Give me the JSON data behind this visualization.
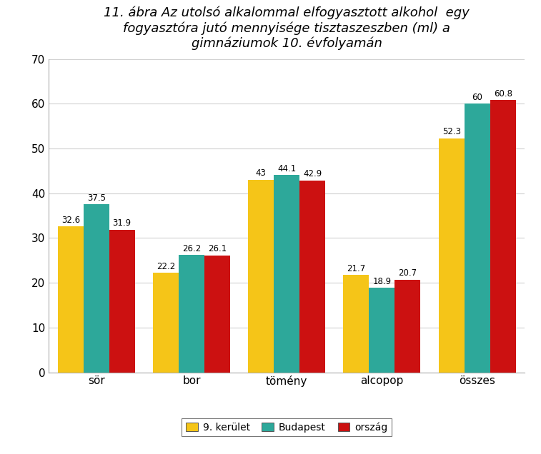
{
  "title": "11. ábra Az utolsó alkalommal elfogyasztott alkohol  egy\nfogyasztóra jutó mennyisége tisztaszeszben (ml) a\ngimnáziumok 10. évfolyamán",
  "categories": [
    "sör",
    "bor",
    "tömény",
    "alcopop",
    "összes"
  ],
  "series": {
    "9. kerület": [
      32.6,
      22.2,
      43.0,
      21.7,
      52.3
    ],
    "Budapest": [
      37.5,
      26.2,
      44.1,
      18.9,
      60.0
    ],
    "ország": [
      31.9,
      26.1,
      42.9,
      20.7,
      60.8
    ]
  },
  "colors": {
    "9. kerület": "#F5C518",
    "Budapest": "#2DA89A",
    "ország": "#CC1111"
  },
  "ylim": [
    0,
    70
  ],
  "yticks": [
    0,
    10,
    20,
    30,
    40,
    50,
    60,
    70
  ],
  "bar_width": 0.27,
  "label_fontsize": 8.5,
  "title_fontsize": 13,
  "axis_fontsize": 11,
  "legend_fontsize": 10,
  "background_color": "#ffffff"
}
